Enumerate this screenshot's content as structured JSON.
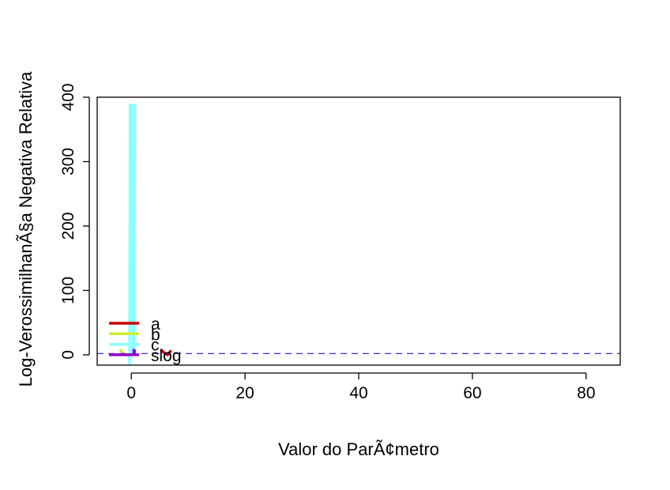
{
  "chart_data": {
    "type": "line",
    "title": "",
    "xlabel": "Valor do ParÃ¢metro",
    "ylabel": "Log-VerossimilhanÃ§a Negativa Relativa",
    "xlim": [
      -6,
      86
    ],
    "ylim": [
      -16,
      400
    ],
    "x_ticks": [
      0,
      20,
      40,
      60,
      80
    ],
    "y_ticks": [
      0,
      100,
      200,
      300,
      400
    ],
    "grid": false,
    "legend_position": "bottom-left",
    "reference_line": {
      "y": 1.92,
      "color": "#3d2bd6",
      "style": "dashed"
    },
    "series": [
      {
        "name": "a",
        "color": "#cc0000",
        "x": [
          5.2,
          5.8,
          6.4,
          7.0
        ],
        "y": [
          8,
          3,
          0,
          7
        ]
      },
      {
        "name": "b",
        "color": "#ccee33",
        "x": [
          -2.0,
          -1.6,
          -1.2,
          -0.8
        ],
        "y": [
          8,
          4,
          1,
          0
        ]
      },
      {
        "name": "c",
        "color": "#88ffff",
        "x": [
          -0.3,
          -0.2,
          0.05,
          0.3,
          0.5,
          0.6,
          0.7
        ],
        "y": [
          -15,
          388,
          388,
          5,
          0,
          388,
          388
        ]
      },
      {
        "name": "slog",
        "color": "#9900cc",
        "x": [
          0.4,
          0.5,
          0.6
        ],
        "y": [
          9,
          1,
          8
        ]
      }
    ]
  }
}
